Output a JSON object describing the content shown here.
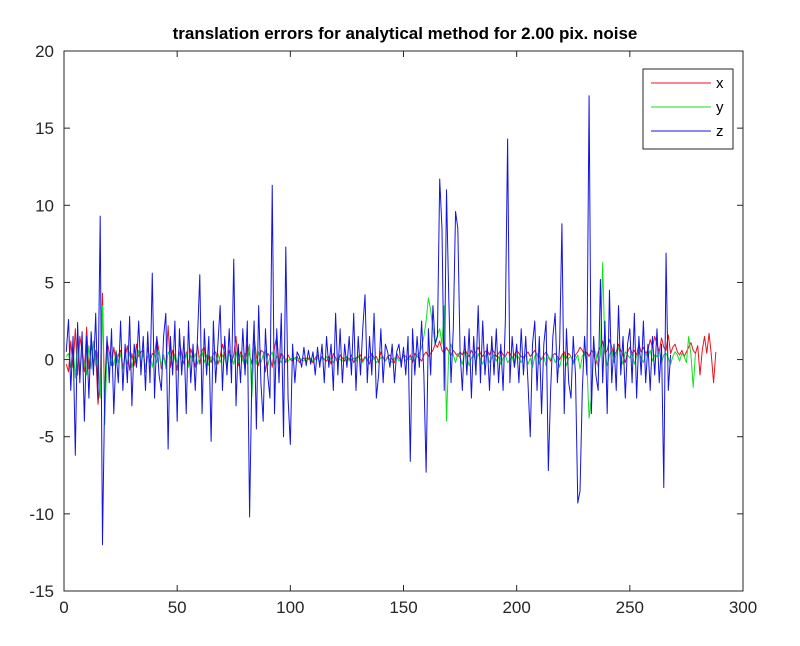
{
  "chart_data": {
    "type": "line",
    "title": "translation errors for analytical method for 2.00 pix. noise",
    "xlabel": "",
    "ylabel": "",
    "xlim": [
      0,
      300
    ],
    "ylim": [
      -15,
      20
    ],
    "xticks": [
      0,
      50,
      100,
      150,
      200,
      250,
      300
    ],
    "yticks": [
      -15,
      -10,
      -5,
      0,
      5,
      10,
      15,
      20
    ],
    "grid": false,
    "legend_position": "top-right",
    "series": [
      {
        "name": "x",
        "color": "#e8141e",
        "y": [
          -0.3,
          -0.8,
          1.2,
          -0.5,
          2.0,
          -1.0,
          1.5,
          0.5,
          -0.8,
          2.1,
          -0.6,
          1.0,
          -0.4,
          0.6,
          -2.9,
          -1.5,
          4.3,
          -3.0,
          1.2,
          0.5,
          -0.4,
          0.8,
          -0.2,
          0.3,
          0.6,
          -0.5,
          0.2,
          0.9,
          -0.7,
          0.4,
          -0.4,
          1.0,
          0.2,
          0.5,
          0.6,
          -0.8,
          0.8,
          -0.2,
          0.4,
          0.3,
          1.4,
          0.5,
          -0.6,
          0.3,
          -0.4,
          2.2,
          -0.5,
          0.6,
          0.2,
          -0.7,
          1.1,
          0.4,
          -0.3,
          0.5,
          -0.4,
          0.7,
          0.2,
          -0.5,
          1.0,
          -0.3,
          0.6,
          0.8,
          -0.6,
          0.3,
          -0.2,
          0.4,
          0.5,
          -0.3,
          0.2,
          1.0,
          0.4,
          -0.5,
          0.6,
          -0.2,
          0.3,
          1.5,
          -0.4,
          0.5,
          0.2,
          -0.6,
          1.0,
          0.3,
          -0.3,
          1.5,
          0.2,
          -0.4,
          0.6,
          0.5,
          -0.8,
          0.4,
          0.2,
          -0.5,
          0.8,
          1.5,
          -0.3,
          0.4,
          0.2,
          -0.2,
          0.3,
          0.0,
          -0.1,
          0.1,
          0.2,
          -0.2,
          0.0,
          0.1,
          -0.1,
          0.1,
          0.0,
          -0.2,
          0.1,
          0.3,
          -0.2,
          0.2,
          0.0,
          -0.1,
          0.2,
          -0.3,
          0.4,
          0.1,
          -0.2,
          0.3,
          0.1,
          -0.1,
          0.2,
          0.0,
          0.3,
          -0.2,
          0.1,
          0.2,
          0.3,
          -0.1,
          0.2,
          0.0,
          -0.3,
          0.4,
          0.1,
          0.2,
          -0.2,
          0.5,
          0.1,
          -0.1,
          0.2,
          0.3,
          0.0,
          -0.2,
          0.4,
          0.1,
          -0.1,
          0.3,
          0.2,
          0.0,
          0.3,
          -0.2,
          0.4,
          0.2,
          0.1,
          -0.1,
          0.3,
          0.5,
          0.2,
          0.4,
          0.6,
          1.0,
          0.8,
          1.2,
          0.6,
          0.4,
          0.8,
          0.5,
          0.3,
          0.6,
          0.4,
          0.2,
          0.5,
          0.3,
          0.7,
          0.4,
          0.2,
          0.6,
          0.3,
          0.5,
          0.8,
          0.4,
          0.2,
          0.5,
          0.6,
          0.3,
          0.7,
          0.5,
          0.2,
          0.4,
          0.6,
          0.3,
          0.2,
          0.5,
          0.4,
          0.1,
          0.3,
          0.6,
          0.4,
          0.2,
          0.1,
          0.3,
          0.5,
          0.2,
          0.4,
          0.6,
          0.3,
          0.2,
          0.0,
          0.3,
          0.5,
          0.2,
          -0.1,
          0.3,
          0.4,
          0.2,
          0.0,
          0.3,
          0.5,
          0.1,
          0.4,
          0.2,
          -0.2,
          0.3,
          0.5,
          0.8,
          0.6,
          0.3,
          0.5,
          0.2,
          0.6,
          0.4,
          -0.3,
          0.5,
          0.8,
          1.2,
          0.4,
          0.6,
          1.3,
          0.8,
          0.3,
          0.5,
          1.0,
          0.6,
          0.3,
          -0.2,
          0.5,
          0.8,
          0.4,
          0.6,
          0.3,
          1.0,
          0.5,
          0.8,
          0.4,
          0.6,
          1.3,
          0.8,
          1.5,
          1.0,
          0.5,
          1.4,
          0.8,
          0.6,
          1.6,
          0.4,
          0.8,
          1.0,
          0.5,
          0.3,
          0.6,
          0.2,
          0.5,
          0.8,
          1.1,
          0.6,
          0.4,
          0.9,
          -1.0,
          0.6,
          1.5,
          0.4,
          1.7,
          0.3,
          -1.5,
          0.5
        ]
      },
      {
        "name": "y",
        "color": "#14e01e",
        "y": [
          0.2,
          0.4,
          -0.5,
          0.8,
          -1.2,
          1.5,
          -0.8,
          0.6,
          -0.3,
          -1.0,
          0.9,
          -0.6,
          1.2,
          -0.4,
          0.5,
          -2.5,
          3.5,
          -4.2,
          0.5,
          -0.8,
          0.3,
          -0.4,
          0.6,
          -0.2,
          0.4,
          -0.6,
          0.3,
          -0.3,
          0.5,
          -0.5,
          0.2,
          -0.4,
          0.6,
          -0.3,
          0.4,
          -0.7,
          0.2,
          0.3,
          -0.5,
          0.4,
          -0.2,
          0.6,
          -0.4,
          0.3,
          -0.6,
          0.5,
          0.2,
          -0.4,
          0.3,
          -0.2,
          0.5,
          -0.3,
          0.2,
          0.4,
          -0.5,
          0.3,
          -0.1,
          0.4,
          -0.3,
          0.2,
          0.5,
          -0.2,
          0.3,
          -0.4,
          0.2,
          0.1,
          -0.3,
          0.4,
          -0.2,
          0.3,
          0.1,
          -0.5,
          0.4,
          0.2,
          -0.3,
          0.5,
          -0.2,
          0.3,
          -0.1,
          0.4,
          -0.3,
          1.0,
          -2.4,
          0.8,
          -0.3,
          0.5,
          -0.2,
          0.3,
          0.6,
          -0.4,
          0.2,
          0.5,
          -0.3,
          0.2,
          0.1,
          -0.2,
          0.2,
          0.0,
          -0.1,
          0.1,
          0.0,
          0.1,
          -0.1,
          0.1,
          0.0,
          -0.1,
          0.1,
          0.0,
          0.1,
          -0.1,
          0.0,
          0.1,
          -0.2,
          0.1,
          0.0,
          0.2,
          -0.1,
          0.1,
          -0.2,
          0.0,
          0.1,
          0.0,
          -0.1,
          0.1,
          0.2,
          -0.1,
          0.0,
          0.1,
          -0.1,
          0.2,
          0.0,
          -0.2,
          0.1,
          0.0,
          0.2,
          -0.1,
          0.1,
          -0.2,
          0.0,
          0.1,
          0.2,
          -0.1,
          0.1,
          0.0,
          -0.2,
          0.1,
          0.2,
          -0.1,
          0.0,
          0.2,
          -0.1,
          0.1,
          0.0,
          0.2,
          -0.1,
          0.3,
          0.4,
          0.8,
          1.5,
          2.5,
          4.0,
          3.2,
          2.0,
          1.0,
          1.6,
          2.0,
          1.0,
          3.5,
          -4.0,
          0.5,
          1.0,
          0.3,
          -0.2,
          0.4,
          0.1,
          -0.3,
          0.5,
          0.2,
          -0.4,
          0.1,
          0.3,
          -0.2,
          0.4,
          0.0,
          -0.3,
          0.2,
          0.4,
          -0.2,
          0.1,
          0.3,
          -0.1,
          0.2,
          -0.3,
          0.1,
          0.3,
          -0.2,
          0.0,
          0.2,
          -0.4,
          0.3,
          0.1,
          -0.2,
          0.2,
          0.3,
          -0.3,
          0.1,
          -0.5,
          0.2,
          0.4,
          -0.3,
          0.1,
          0.2,
          -0.4,
          0.2,
          0.0,
          0.3,
          -0.2,
          0.1,
          -0.5,
          0.2,
          0.3,
          -0.4,
          0.1,
          0.2,
          -0.3,
          0.0,
          0.3,
          -0.6,
          0.2,
          0.5,
          -0.3,
          -3.8,
          -2.5,
          0.8,
          0.4,
          -0.5,
          0.3,
          6.3,
          0.5,
          -0.4,
          0.3,
          0.6,
          -0.2,
          0.4,
          0.8,
          0.2,
          -0.3,
          0.5,
          0.3,
          0.1,
          0.4,
          -0.3,
          0.2,
          0.5,
          0.1,
          -0.2,
          0.4,
          0.2,
          0.6,
          -0.1,
          0.3,
          0.2,
          0.5,
          -0.2,
          0.3,
          0.4,
          0.1,
          -0.3,
          0.2,
          0.5,
          0.3,
          -0.1,
          0.4,
          0.2,
          -0.2,
          1.5,
          0.3,
          -1.8,
          0.4
        ]
      },
      {
        "name": "z",
        "color": "#1414e0",
        "y": [
          0.5,
          2.6,
          -2.0,
          1.5,
          -6.2,
          2.4,
          -1.5,
          1.8,
          -4.0,
          1.5,
          -2.5,
          1.8,
          -1.0,
          3.0,
          -2.5,
          9.3,
          -12.0,
          -2.0,
          1.5,
          -1.5,
          2.0,
          -3.5,
          0.5,
          -1.5,
          2.5,
          -2.0,
          1.0,
          -1.5,
          2.8,
          -3.0,
          1.0,
          -0.5,
          2.5,
          -1.0,
          1.5,
          -2.0,
          1.8,
          -1.5,
          5.6,
          -2.5,
          1.5,
          -1.0,
          -2.0,
          1.5,
          3.0,
          -5.8,
          1.5,
          -1.0,
          2.5,
          -4.0,
          2.0,
          -1.0,
          1.5,
          -3.5,
          2.5,
          -1.5,
          1.0,
          -2.0,
          1.5,
          5.5,
          -3.5,
          2.0,
          -1.0,
          1.5,
          -5.3,
          2.5,
          -1.5,
          1.0,
          3.5,
          -2.0,
          1.5,
          -1.0,
          2.0,
          -1.5,
          6.5,
          -3.0,
          1.0,
          -1.5,
          2.0,
          -1.0,
          2.5,
          -10.2,
          -1.0,
          2.5,
          -4.5,
          3.5,
          -1.5,
          -4.0,
          2.0,
          -1.0,
          -2.5,
          11.3,
          -3.5,
          2.0,
          -1.5,
          3.0,
          -5.0,
          7.3,
          -2.5,
          -5.5,
          1.0,
          -1.5,
          0.5,
          0.2,
          -0.5,
          0.8,
          -0.4,
          0.6,
          -0.3,
          0.5,
          -1.0,
          0.8,
          -0.5,
          1.0,
          -1.5,
          1.5,
          -0.5,
          1.0,
          -2.0,
          3.0,
          -1.0,
          2.0,
          -1.5,
          1.0,
          -0.5,
          1.5,
          -1.0,
          3.0,
          -2.0,
          1.5,
          -1.0,
          2.0,
          4.2,
          -1.5,
          1.5,
          -1.0,
          3.0,
          -2.5,
          -1.0,
          2.0,
          -1.5,
          1.0,
          0.5,
          -0.5,
          1.0,
          -1.5,
          0.5,
          1.0,
          -0.5,
          0.8,
          -1.0,
          1.5,
          -6.6,
          2.0,
          -1.0,
          1.5,
          -0.5,
          2.5,
          -1.0,
          -7.3,
          2.0,
          -1.0,
          3.5,
          1.0,
          1.5,
          11.7,
          8.5,
          -2.0,
          11.0,
          4.0,
          -1.5,
          2.0,
          9.6,
          8.5,
          0.5,
          -2.0,
          1.5,
          -1.0,
          2.0,
          -2.5,
          1.5,
          -1.0,
          3.5,
          -1.5,
          2.5,
          -1.0,
          1.0,
          -2.0,
          1.5,
          -1.0,
          2.0,
          -1.5,
          1.0,
          -2.0,
          2.5,
          14.3,
          -1.5,
          1.5,
          -0.5,
          1.0,
          -1.5,
          2.0,
          -1.0,
          1.5,
          -1.5,
          -5.0,
          1.0,
          2.5,
          -2.0,
          1.5,
          -3.5,
          1.0,
          2.5,
          -7.2,
          -2.0,
          1.5,
          3.0,
          -1.5,
          1.0,
          8.8,
          -3.5,
          2.0,
          -1.5,
          -2.5,
          1.5,
          -1.0,
          -9.3,
          -8.5,
          -2.0,
          1.5,
          -1.0,
          17.1,
          -3.5,
          1.5,
          -1.0,
          -2.0,
          5.2,
          -1.5,
          2.5,
          -3.5,
          4.5,
          -1.5,
          1.0,
          -2.0,
          3.5,
          -1.0,
          1.5,
          -2.5,
          1.0,
          2.0,
          -1.5,
          3.0,
          -2.5,
          1.5,
          -1.0,
          2.5,
          -1.5,
          1.0,
          -2.0,
          1.5,
          -1.0,
          2.0,
          -1.5,
          1.0,
          -8.3,
          6.9,
          -2.0,
          0.3
        ]
      }
    ]
  }
}
